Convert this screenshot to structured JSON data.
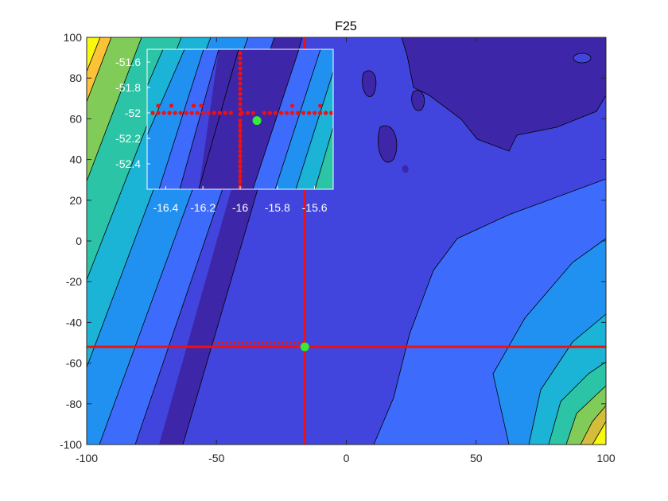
{
  "chart_data": [
    {
      "type": "contour",
      "title": "F25",
      "xlabel": "",
      "ylabel": "",
      "xlim": [
        -100,
        100
      ],
      "ylim": [
        -100,
        100
      ],
      "xticks": [
        -100,
        -50,
        0,
        50,
        100
      ],
      "yticks": [
        -100,
        -80,
        -60,
        -40,
        -20,
        0,
        20,
        40,
        60,
        80,
        100
      ],
      "colormap": [
        "#3e26a8",
        "#4145de",
        "#3d6cfc",
        "#2191f1",
        "#1bb4d6",
        "#2cc4a6",
        "#81cc59",
        "#d3bd3b",
        "#fcc238",
        "#f9f80f"
      ],
      "crosshair": {
        "x": -16,
        "y": -52
      },
      "optimum": {
        "x": -16,
        "y": -52,
        "color": "#33ee33"
      },
      "line_color": "#ee1111"
    },
    {
      "type": "contour",
      "role": "inset-zoom",
      "xlim": [
        -16.5,
        -15.5
      ],
      "ylim": [
        -52.6,
        -51.5
      ],
      "xticks": [
        -16.4,
        -16.2,
        -16,
        -15.8,
        -15.6
      ],
      "xtick_labels": [
        "-16.4",
        "-16.2",
        "-16",
        "-15.8",
        "-15.6"
      ],
      "yticks": [
        -51.6,
        -51.8,
        -52,
        -52.2,
        -52.4
      ],
      "ytick_labels": [
        "-51.6",
        "-51.8",
        "-52",
        "-52.2",
        "-52.4"
      ],
      "crosshair": {
        "x": -16,
        "y": -52
      },
      "optimum": {
        "x": -15.91,
        "y": -52.06
      },
      "sample_points_x": [
        -16.47,
        -16.44,
        -16.41,
        -16.38,
        -16.35,
        -16.32,
        -16.29,
        -16.26,
        -16.23,
        -16.2,
        -16.17,
        -16.14,
        -16.11,
        -16.08,
        -16.05,
        -15.99,
        -15.96,
        -15.93,
        -15.87,
        -15.84,
        -15.81,
        -15.78,
        -15.75,
        -15.72,
        -15.69,
        -15.66,
        -15.63,
        -15.6,
        -15.57,
        -15.54,
        -15.51
      ],
      "sample_points_y": [
        -51.53,
        -51.57,
        -51.61,
        -51.65,
        -51.69,
        -51.73,
        -51.77,
        -51.81,
        -51.85,
        -51.89,
        -51.93,
        -51.97,
        -52.01,
        -52.06,
        -52.1,
        -52.14,
        -52.18,
        -52.22,
        -52.26,
        -52.3,
        -52.34,
        -52.38,
        -52.42,
        -52.46,
        -52.5,
        -52.54,
        -52.58
      ]
    }
  ]
}
